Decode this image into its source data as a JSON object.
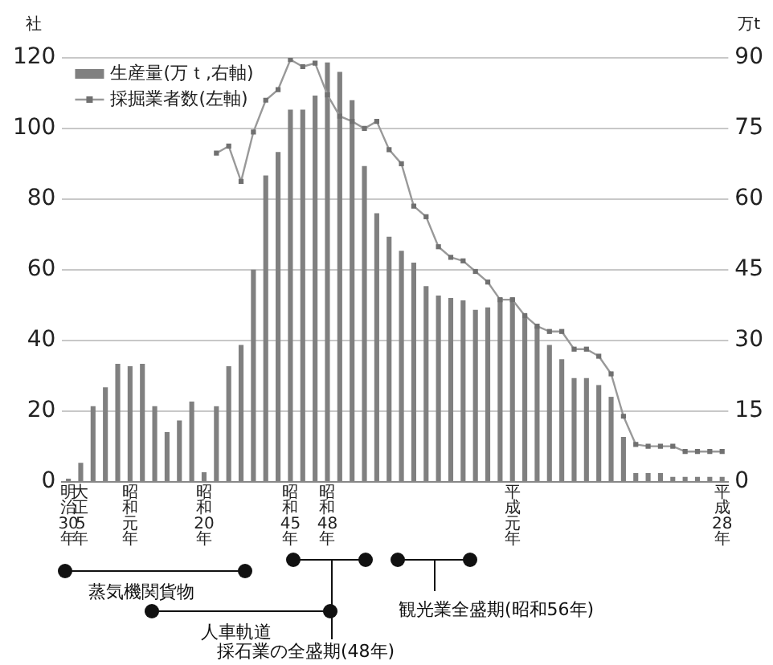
{
  "chart_data": {
    "type": "bar",
    "ylabel": "社",
    "y2label": "万t",
    "categories": [
      "明治30年",
      "大正5年",
      null,
      null,
      null,
      "昭和元年",
      null,
      null,
      null,
      null,
      null,
      "昭和20年",
      null,
      null,
      null,
      null,
      null,
      null,
      "昭和45年",
      null,
      null,
      "昭和48年",
      null,
      null,
      null,
      null,
      null,
      null,
      null,
      null,
      null,
      null,
      null,
      null,
      null,
      null,
      "平成元年",
      null,
      null,
      null,
      null,
      null,
      null,
      null,
      null,
      null,
      null,
      null,
      null,
      null,
      null,
      null,
      null,
      "平成28年"
    ],
    "series": [
      {
        "name": "生産量(万ｔ,右軸)",
        "axis": "y2",
        "color": "#808080",
        "values": [
          0.6,
          4,
          16,
          20,
          25,
          24.5,
          25,
          16,
          10.5,
          13,
          17,
          2,
          16,
          24.5,
          29,
          45,
          65,
          70,
          79,
          79,
          82,
          89,
          87,
          81,
          67,
          57,
          52,
          49,
          46.5,
          41.5,
          39.5,
          39,
          38.5,
          36.5,
          37,
          39,
          39,
          35.5,
          33,
          29,
          26,
          22,
          22,
          20.5,
          18,
          9.5,
          1.8,
          1.8,
          1.8,
          1,
          1,
          1,
          1,
          1
        ]
      },
      {
        "name": "採掘業者数(左軸)",
        "type": "line",
        "color": "#999999",
        "values": [
          null,
          null,
          null,
          null,
          null,
          null,
          null,
          null,
          null,
          null,
          null,
          null,
          93,
          95,
          85,
          99,
          108,
          111,
          119.5,
          117.5,
          118.5,
          109.5,
          103.5,
          102,
          100,
          102,
          94,
          90,
          78,
          75,
          66.5,
          63.5,
          62.5,
          59.5,
          56.5,
          51.5,
          51.5,
          47,
          44,
          42.5,
          42.5,
          37.5,
          37.5,
          35.5,
          30.5,
          18.5,
          10.5,
          10,
          10,
          10,
          8.5,
          8.5,
          8.5,
          8.5
        ]
      }
    ],
    "ylim": [
      0,
      120
    ],
    "yticks": [
      0,
      20,
      40,
      60,
      80,
      100,
      120
    ],
    "y2lim": [
      0,
      90
    ],
    "y2ticks": [
      0,
      15,
      30,
      45,
      60,
      75,
      90
    ],
    "grid": "y",
    "legend": "top left",
    "marker": "square",
    "line_style": "solid",
    "annotations": [
      "蒸気機関貨物",
      "人車軌道",
      "採石業の全盛期(48年)",
      "観光業全盛期(昭和56年)"
    ]
  }
}
